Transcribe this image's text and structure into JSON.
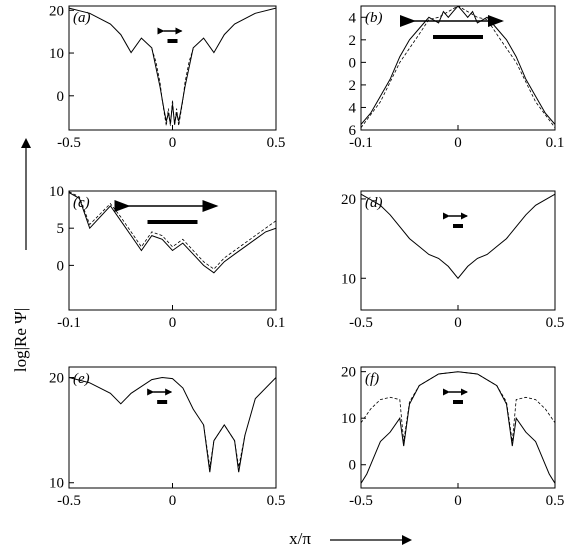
{
  "figure": {
    "ylabel": "log|Re Ψ|",
    "xlabel": "x/π"
  },
  "chart_data": [
    {
      "type": "line",
      "panel_label": "(a)",
      "xlim": [
        -0.5,
        0.5
      ],
      "ylim": [
        -8,
        21
      ],
      "y_inverted": false,
      "xticks": [
        -0.5,
        0,
        0.5
      ],
      "xtick_labels": [
        "-0.5",
        "0",
        "0.5"
      ],
      "yticks": [
        20,
        10,
        0
      ],
      "ytick_labels": [
        "20",
        "10",
        "0"
      ],
      "grid": false,
      "arrow": {
        "type": "small",
        "x": 0
      },
      "series": [
        {
          "style": "solid",
          "x": [
            -0.5,
            -0.4,
            -0.3,
            -0.25,
            -0.2,
            -0.15,
            -0.1,
            -0.06,
            -0.04,
            -0.03,
            -0.02,
            -0.01,
            0,
            0.01,
            0.02,
            0.03,
            0.04,
            0.06,
            0.1,
            0.15,
            0.2,
            0.25,
            0.3,
            0.4,
            0.5
          ],
          "y": [
            20.5,
            19.3,
            16.8,
            14.3,
            10.1,
            13.5,
            11.2,
            2,
            -3.5,
            -6,
            -4,
            -6.5,
            -2,
            -6.5,
            -4,
            -6,
            -3.5,
            2,
            11.2,
            13.5,
            10.1,
            14.3,
            16.8,
            19.3,
            20.5
          ]
        },
        {
          "style": "dashed",
          "x": [
            -0.1,
            -0.08,
            -0.06,
            -0.05,
            -0.04,
            -0.03,
            -0.02,
            -0.01,
            0,
            0.01,
            0.02,
            0.03,
            0.04,
            0.05,
            0.06,
            0.08,
            0.1
          ],
          "y": [
            11,
            8,
            3,
            -1,
            -4,
            -7,
            -3,
            -7,
            -1,
            -7,
            -3,
            -7,
            -4,
            -1,
            3,
            8,
            11
          ]
        }
      ]
    },
    {
      "type": "line",
      "panel_label": "(b)",
      "xlim": [
        -0.1,
        0.1
      ],
      "ylim": [
        -5,
        6
      ],
      "y_inverted": true,
      "xticks": [
        -0.1,
        0,
        0.1
      ],
      "xtick_labels": [
        "-0.1",
        "0",
        "0.1"
      ],
      "yticks": [
        6,
        4,
        2,
        0,
        -2,
        -4
      ],
      "ytick_labels": [
        "6",
        "4",
        "2",
        "0",
        "2",
        "4"
      ],
      "grid": false,
      "arrow": {
        "type": "large",
        "x": 0
      },
      "series": [
        {
          "style": "solid",
          "x": [
            -0.1,
            -0.09,
            -0.08,
            -0.07,
            -0.06,
            -0.05,
            -0.04,
            -0.03,
            -0.02,
            -0.015,
            -0.01,
            -0.005,
            0,
            0.005,
            0.01,
            0.015,
            0.02,
            0.03,
            0.04,
            0.05,
            0.06,
            0.07,
            0.08,
            0.09,
            0.1
          ],
          "y": [
            5.5,
            4.5,
            3,
            1.5,
            -0.5,
            -2,
            -3,
            -4,
            -3.5,
            -4.5,
            -4,
            -4.5,
            -5,
            -4.5,
            -4,
            -4.5,
            -3.5,
            -4,
            -3,
            -2,
            -0.5,
            1.5,
            3,
            4.5,
            5.5
          ]
        },
        {
          "style": "dashed",
          "x": [
            -0.1,
            -0.08,
            -0.06,
            -0.04,
            -0.03,
            -0.02,
            -0.01,
            0,
            0.01,
            0.02,
            0.03,
            0.04,
            0.06,
            0.08,
            0.1
          ],
          "y": [
            5.8,
            3.5,
            0,
            -2.5,
            -3.8,
            -4,
            -4.5,
            -5,
            -4.5,
            -4,
            -3.8,
            -2.5,
            0,
            3.5,
            5.8
          ]
        }
      ]
    },
    {
      "type": "line",
      "panel_label": "(c)",
      "xlim": [
        -0.1,
        0.1
      ],
      "ylim": [
        -6,
        10
      ],
      "y_inverted": false,
      "xticks": [
        -0.1,
        0,
        0.1
      ],
      "xtick_labels": [
        "-0.1",
        "0",
        "0.1"
      ],
      "yticks": [
        10,
        5,
        0
      ],
      "ytick_labels": [
        "10",
        "5",
        "0"
      ],
      "grid": false,
      "arrow": {
        "type": "large",
        "x": 0
      },
      "series": [
        {
          "style": "solid",
          "x": [
            -0.1,
            -0.09,
            -0.08,
            -0.06,
            -0.05,
            -0.04,
            -0.03,
            -0.02,
            -0.01,
            0,
            0.01,
            0.02,
            0.03,
            0.04,
            0.05,
            0.06,
            0.07,
            0.08,
            0.09,
            0.1
          ],
          "y": [
            9.8,
            9,
            5,
            8,
            6,
            4,
            2,
            4,
            3.5,
            2,
            3,
            1.5,
            0,
            -1,
            0.5,
            1.5,
            2.5,
            3.5,
            4.5,
            5
          ]
        },
        {
          "style": "dashed",
          "x": [
            -0.1,
            -0.09,
            -0.08,
            -0.06,
            -0.05,
            -0.04,
            -0.03,
            -0.02,
            -0.01,
            0,
            0.01,
            0.02,
            0.03,
            0.04,
            0.05,
            0.06,
            0.07,
            0.08,
            0.09,
            0.1
          ],
          "y": [
            9.9,
            9.2,
            5.5,
            8.3,
            6.5,
            4.5,
            2.5,
            4.5,
            4,
            2.5,
            3.5,
            2,
            0.5,
            -0.5,
            1,
            2,
            3,
            4,
            5,
            6
          ]
        }
      ]
    },
    {
      "type": "line",
      "panel_label": "(d)",
      "xlim": [
        -0.5,
        0.5
      ],
      "ylim": [
        6,
        21
      ],
      "y_inverted": false,
      "xticks": [
        -0.5,
        0,
        0.5
      ],
      "xtick_labels": [
        "-0.5",
        "0",
        "0.5"
      ],
      "yticks": [
        20,
        10
      ],
      "ytick_labels": [
        "20",
        "10"
      ],
      "grid": false,
      "arrow": {
        "type": "small",
        "x": 0
      },
      "series": [
        {
          "style": "solid",
          "x": [
            -0.5,
            -0.4,
            -0.35,
            -0.3,
            -0.25,
            -0.2,
            -0.15,
            -0.1,
            -0.05,
            0,
            0.05,
            0.1,
            0.15,
            0.2,
            0.25,
            0.3,
            0.35,
            0.4,
            0.5
          ],
          "y": [
            20.6,
            19.2,
            18,
            16.5,
            15,
            14,
            13,
            12.5,
            11.5,
            10,
            11.5,
            12.5,
            13,
            14,
            15,
            16.5,
            18,
            19.2,
            20.6
          ]
        }
      ]
    },
    {
      "type": "line",
      "panel_label": "(e)",
      "xlim": [
        -0.5,
        0.5
      ],
      "ylim": [
        9.5,
        21
      ],
      "y_inverted": false,
      "xticks": [
        -0.5,
        0,
        0.5
      ],
      "xtick_labels": [
        "-0.5",
        "0",
        "0.5"
      ],
      "yticks": [
        20,
        10
      ],
      "ytick_labels": [
        "20",
        "10"
      ],
      "grid": false,
      "arrow": {
        "type": "small",
        "x": -0.05
      },
      "series": [
        {
          "style": "solid",
          "x": [
            -0.5,
            -0.4,
            -0.3,
            -0.25,
            -0.2,
            -0.1,
            -0.05,
            0,
            0.05,
            0.1,
            0.15,
            0.18,
            0.2,
            0.25,
            0.3,
            0.32,
            0.35,
            0.4,
            0.5
          ],
          "y": [
            20,
            19.5,
            18.5,
            17.5,
            18.5,
            19.8,
            20,
            19.9,
            19,
            17,
            15.5,
            11,
            14,
            15.5,
            14,
            11,
            14.5,
            18,
            20
          ]
        },
        {
          "style": "dashed",
          "x": [
            0.15,
            0.18,
            0.2,
            0.25,
            0.3,
            0.32,
            0.35
          ],
          "y": [
            15.5,
            11.5,
            14,
            15.5,
            14,
            11.5,
            14.5
          ]
        }
      ]
    },
    {
      "type": "line",
      "panel_label": "(f)",
      "xlim": [
        -0.5,
        0.5
      ],
      "ylim": [
        -5,
        21
      ],
      "y_inverted": false,
      "xticks": [
        -0.5,
        0,
        0.5
      ],
      "xtick_labels": [
        "-0.5",
        "0",
        "0.5"
      ],
      "yticks": [
        20,
        10,
        0
      ],
      "ytick_labels": [
        "20",
        "10",
        "0"
      ],
      "grid": false,
      "arrow": {
        "type": "small",
        "x": 0
      },
      "series": [
        {
          "style": "solid",
          "x": [
            -0.5,
            -0.47,
            -0.45,
            -0.42,
            -0.4,
            -0.35,
            -0.3,
            -0.28,
            -0.25,
            -0.2,
            -0.1,
            0,
            0.1,
            0.2,
            0.25,
            0.28,
            0.3,
            0.35,
            0.4,
            0.42,
            0.45,
            0.47,
            0.5
          ],
          "y": [
            -4,
            -2,
            0,
            3,
            5,
            7,
            10,
            4,
            13,
            17,
            19.5,
            20,
            19.5,
            17,
            13,
            4,
            10,
            7,
            5,
            3,
            0,
            -2,
            -4
          ]
        },
        {
          "style": "dashed",
          "x": [
            -0.5,
            -0.45,
            -0.4,
            -0.35,
            -0.3,
            -0.28,
            -0.25,
            -0.2,
            -0.1,
            0,
            0.1,
            0.2,
            0.25,
            0.28,
            0.3,
            0.35,
            0.4,
            0.45,
            0.5
          ],
          "y": [
            9,
            12,
            14,
            14.5,
            14,
            5,
            13.5,
            17,
            19.5,
            20,
            19.5,
            17,
            13.5,
            5,
            14,
            14.5,
            14,
            12,
            9
          ]
        }
      ]
    }
  ]
}
